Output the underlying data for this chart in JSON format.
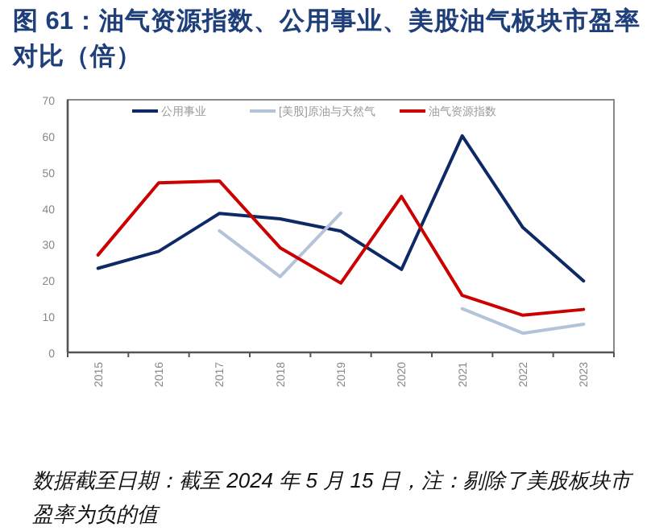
{
  "chart_data": {
    "type": "line",
    "title": "图 61：油气资源指数、公用事业、美股油气板块市盈率对比（倍）",
    "categories": [
      "2015",
      "2016",
      "2017",
      "2018",
      "2019",
      "2020",
      "2021",
      "2022",
      "2023"
    ],
    "series": [
      {
        "name": "公用事业",
        "color": "#0e2a66",
        "values": [
          23.3,
          28,
          38.5,
          37,
          33.6,
          23,
          60,
          34.6,
          19.8
        ]
      },
      {
        "name": "[美股]原油与天然气",
        "color": "#b4c3d9",
        "values": [
          null,
          null,
          33.7,
          21,
          38.6,
          null,
          12.1,
          5.3,
          7.8
        ]
      },
      {
        "name": "油气资源指数",
        "color": "#cc0000",
        "values": [
          27,
          47,
          47.5,
          29,
          19.2,
          43.2,
          15.8,
          10.3,
          11.9
        ]
      }
    ],
    "ylim": [
      0,
      70
    ],
    "yticks": [
      0,
      10,
      20,
      30,
      40,
      50,
      60,
      70
    ],
    "legend": "top",
    "grid": false,
    "marker": "none",
    "line_style": "solid",
    "annotations": [
      "数据截至日期：截至 2024 年 5 月 15 日，注：剔除了美股板块市盈率为负的值"
    ]
  }
}
